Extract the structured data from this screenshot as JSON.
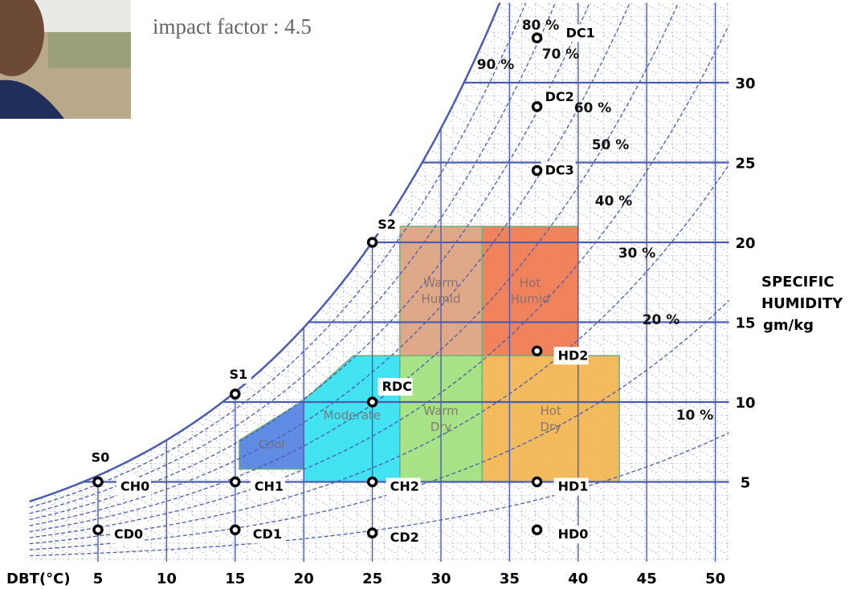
{
  "caption": "impact factor : 4.5",
  "chart_data": {
    "type": "psychrometric",
    "x_label": "DBT(°C)",
    "y_label": [
      "SPECIFIC",
      "HUMIDITY",
      "gm/kg"
    ],
    "xlim": [
      0,
      51
    ],
    "ylim": [
      0,
      35
    ],
    "xticks": [
      5,
      10,
      15,
      20,
      25,
      30,
      35,
      40,
      45,
      50
    ],
    "yticks": [
      5,
      10,
      15,
      20,
      25,
      30
    ],
    "grid": true,
    "grid_color": "#4b5cb0",
    "rh_curves": [
      {
        "value": 90,
        "label": "90 %"
      },
      {
        "value": 80,
        "label": "80 %"
      },
      {
        "value": 70,
        "label": "70 %"
      },
      {
        "value": 60,
        "label": "60 %"
      },
      {
        "value": 50,
        "label": "50 %"
      },
      {
        "value": 40,
        "label": "40 %"
      },
      {
        "value": 30,
        "label": "30 %"
      },
      {
        "value": 20,
        "label": "20 %"
      },
      {
        "value": 10,
        "label": "10 %"
      }
    ],
    "zones": [
      {
        "label": [
          "Cool"
        ],
        "color": "#4f80e0",
        "x": [
          15.3,
          20,
          20,
          15.3
        ],
        "y": [
          7.6,
          10.1,
          5.8,
          5.8
        ]
      },
      {
        "label": [
          "Moderate"
        ],
        "color": "#2fe0f0",
        "x": [
          20,
          23.6,
          27,
          27,
          20
        ],
        "y": [
          10.1,
          12.9,
          12.9,
          5,
          5
        ]
      },
      {
        "label": [
          "Warm",
          "Dry"
        ],
        "color": "#9ee07a",
        "x": [
          27,
          33,
          33,
          27
        ],
        "y": [
          12.9,
          12.9,
          5,
          5
        ]
      },
      {
        "label": [
          "Hot",
          "Dry"
        ],
        "color": "#f2b24c",
        "x": [
          33,
          43,
          43,
          33
        ],
        "y": [
          12.9,
          12.9,
          5,
          5
        ]
      },
      {
        "label": [
          "Warm",
          "Humid"
        ],
        "color": "#dba07c",
        "x": [
          27,
          33,
          33,
          27
        ],
        "y": [
          21,
          21,
          12.9,
          12.9
        ]
      },
      {
        "label": [
          "Hot",
          "Humid"
        ],
        "color": "#f0764a",
        "x": [
          33,
          40,
          40,
          33
        ],
        "y": [
          21,
          21,
          12.9,
          12.9
        ]
      }
    ],
    "points": [
      {
        "label": "S0",
        "x": 5,
        "y": 5
      },
      {
        "label": "CH0",
        "x": 5,
        "y": 5
      },
      {
        "label": "CD0",
        "x": 5,
        "y": 2
      },
      {
        "label": "S1",
        "x": 15,
        "y": 10.5
      },
      {
        "label": "CH1",
        "x": 15,
        "y": 5
      },
      {
        "label": "CD1",
        "x": 15,
        "y": 2
      },
      {
        "label": "S2",
        "x": 25,
        "y": 20
      },
      {
        "label": "RDC",
        "x": 25,
        "y": 10
      },
      {
        "label": "CH2",
        "x": 25,
        "y": 5
      },
      {
        "label": "CD2",
        "x": 25,
        "y": 1.8
      },
      {
        "label": "HD2",
        "x": 37,
        "y": 13.2
      },
      {
        "label": "HD1",
        "x": 37,
        "y": 5
      },
      {
        "label": "HD0",
        "x": 37,
        "y": 2
      },
      {
        "label": "DC3",
        "x": 37,
        "y": 24.5
      },
      {
        "label": "DC2",
        "x": 37,
        "y": 28.5
      },
      {
        "label": "DC1",
        "x": 37,
        "y": 32.8
      }
    ]
  }
}
